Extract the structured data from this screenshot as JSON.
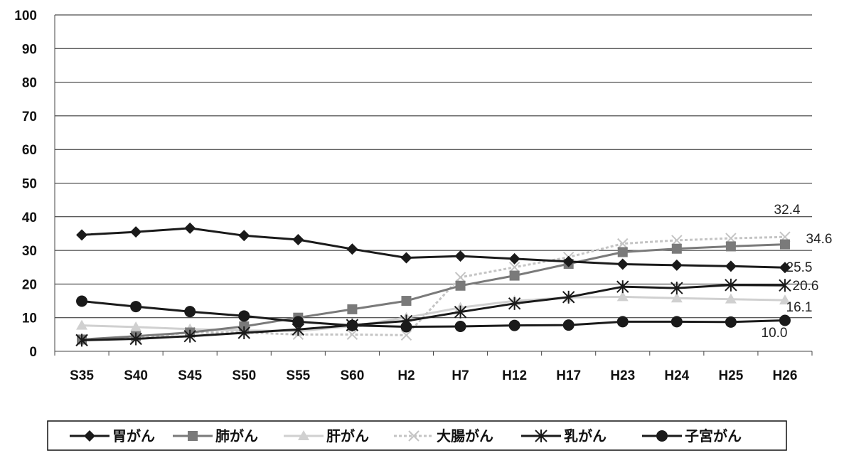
{
  "chart_data": {
    "type": "line",
    "categories": [
      "S35",
      "S40",
      "S45",
      "S50",
      "S55",
      "S60",
      "H2",
      "H7",
      "H12",
      "H17",
      "H23",
      "H24",
      "H25",
      "H26"
    ],
    "ylim": [
      0,
      100
    ],
    "yticks": [
      "0",
      "10",
      "20",
      "30",
      "40",
      "50",
      "60",
      "70",
      "80",
      "90",
      "100"
    ],
    "grid": true,
    "legend_position": "bottom",
    "series": [
      {
        "name": "胃がん",
        "marker": "diamond",
        "color": "#1a1a1a",
        "values": [
          34.6,
          35.5,
          36.6,
          34.4,
          33.2,
          30.4,
          27.8,
          28.3,
          27.5,
          26.7,
          25.9,
          25.6,
          25.3,
          24.9
        ]
      },
      {
        "name": "肺がん",
        "marker": "square",
        "color": "#7a7a7a",
        "values": [
          3.5,
          4.5,
          5.6,
          7.4,
          10.0,
          12.5,
          15.0,
          19.5,
          22.5,
          26.0,
          29.5,
          30.5,
          31.2,
          31.8
        ]
      },
      {
        "name": "肝がん",
        "marker": "triangle",
        "color": "#d0d0d0",
        "values": [
          7.7,
          7.2,
          6.6,
          6.2,
          6.0,
          7.5,
          10.0,
          13.0,
          15.0,
          16.0,
          16.2,
          15.8,
          15.5,
          15.2
        ]
      },
      {
        "name": "大腸がん",
        "marker": "crossline",
        "color": "#c4c4c4",
        "values": [
          3.3,
          4.0,
          5.6,
          5.6,
          5.0,
          5.0,
          4.8,
          22.0,
          25.0,
          28.0,
          32.0,
          33.0,
          33.6,
          34.0
        ]
      },
      {
        "name": "乳がん",
        "marker": "star",
        "color": "#1a1a1a",
        "values": [
          3.3,
          3.7,
          4.5,
          5.5,
          6.5,
          7.8,
          9.0,
          11.7,
          14.2,
          16.1,
          19.2,
          18.8,
          19.7,
          19.6
        ]
      },
      {
        "name": "子宮がん",
        "marker": "circle",
        "color": "#1a1a1a",
        "values": [
          14.9,
          13.3,
          11.8,
          10.5,
          8.8,
          7.7,
          7.3,
          7.4,
          7.7,
          7.8,
          8.8,
          8.8,
          8.7,
          9.2
        ]
      }
    ],
    "end_labels": [
      "32.4",
      "34.6",
      "25.5",
      "20.6",
      "16.1",
      "10.0"
    ]
  }
}
